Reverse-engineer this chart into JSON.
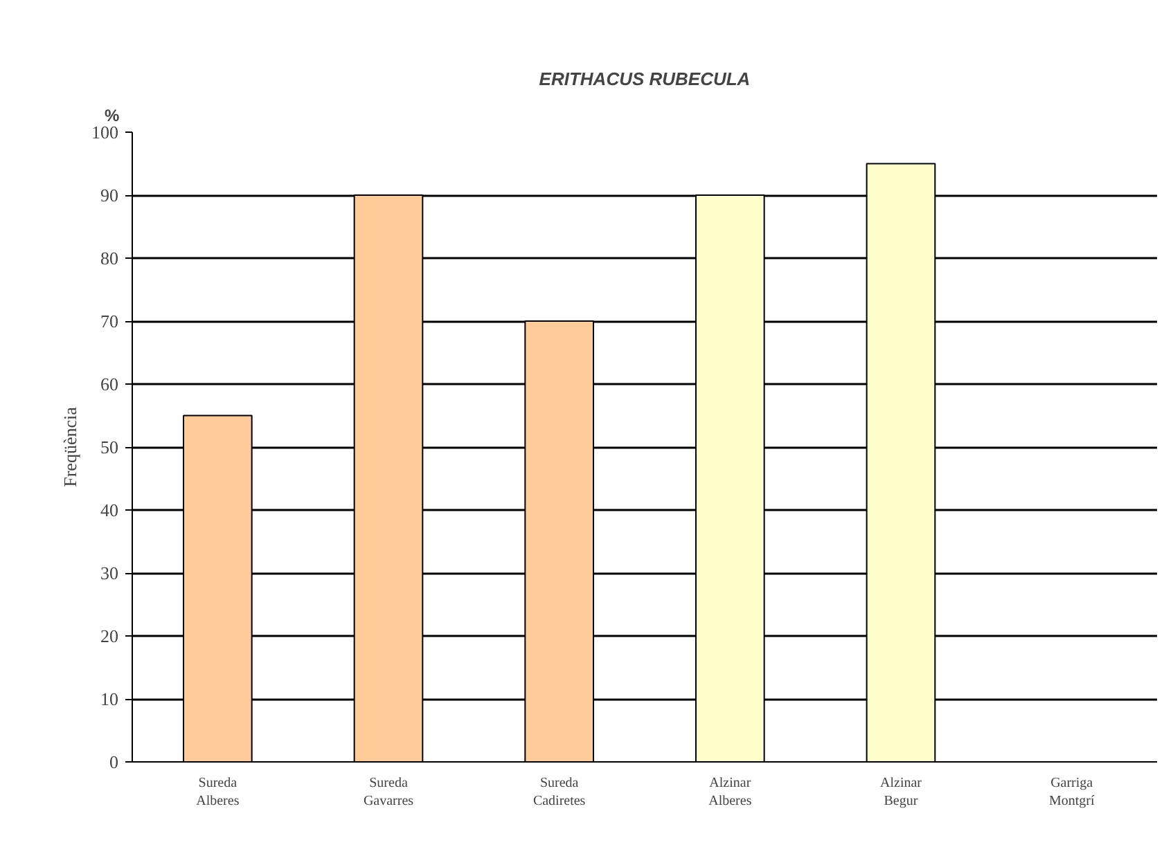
{
  "chart_data": {
    "type": "bar",
    "title": "ERITHACUS RUBECULA",
    "ylabel": "Freqüència",
    "annotations": [
      "%"
    ],
    "categories": [
      "Sureda\nAlberes",
      "Sureda\nGavarres",
      "Sureda\nCadiretes",
      "Alzinar\nAlberes",
      "Alzinar\nBegur",
      "Garriga\nMontgrí"
    ],
    "values": [
      55,
      90,
      70,
      90,
      95,
      null
    ],
    "colors": [
      "#ffcc99",
      "#ffcc99",
      "#ffcc99",
      "#ffffcc",
      "#ffffcc",
      "#ffffcc"
    ],
    "ylim": [
      0,
      100
    ],
    "yticks": [
      0,
      10,
      20,
      30,
      40,
      50,
      60,
      70,
      80,
      90,
      100
    ],
    "grid": "y"
  }
}
